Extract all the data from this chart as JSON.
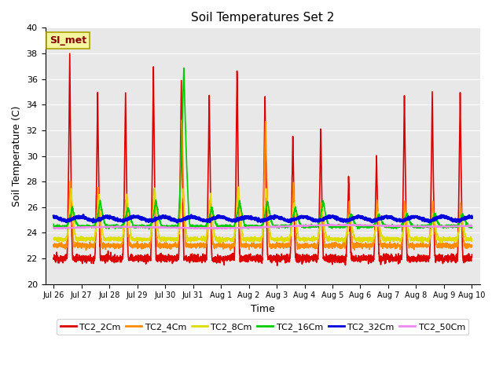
{
  "title": "Soil Temperatures Set 2",
  "xlabel": "Time",
  "ylabel": "Soil Temperature (C)",
  "ylim": [
    20,
    40
  ],
  "annotation": "SI_met",
  "bg_color": "#e8e8e8",
  "series": [
    {
      "label": "TC2_2Cm",
      "color": "#dd0000",
      "lw": 1.2
    },
    {
      "label": "TC2_4Cm",
      "color": "#ff8c00",
      "lw": 1.2
    },
    {
      "label": "TC2_8Cm",
      "color": "#dddd00",
      "lw": 1.2
    },
    {
      "label": "TC2_16Cm",
      "color": "#00cc00",
      "lw": 1.2
    },
    {
      "label": "TC2_32Cm",
      "color": "#0000dd",
      "lw": 2.0
    },
    {
      "label": "TC2_50Cm",
      "color": "#ee88ee",
      "lw": 1.2
    }
  ],
  "x_tick_labels": [
    "Jul 26",
    "Jul 27",
    "Jul 28",
    "Jul 29",
    "Jul 30",
    "Jul 31",
    "Aug 1",
    "Aug 2",
    "Aug 3",
    "Aug 4",
    "Aug 5",
    "Aug 6",
    "Aug 7",
    "Aug 8",
    "Aug 9",
    "Aug 10"
  ],
  "x_tick_positions": [
    0,
    1,
    2,
    3,
    4,
    5,
    6,
    7,
    8,
    9,
    10,
    11,
    12,
    13,
    14,
    15
  ],
  "yticks": [
    20,
    22,
    24,
    26,
    28,
    30,
    32,
    34,
    36,
    38,
    40
  ],
  "legend_colors": [
    "#dd0000",
    "#ff8c00",
    "#dddd00",
    "#00cc00",
    "#0000dd",
    "#ee88ee"
  ],
  "legend_labels": [
    "TC2_2Cm",
    "TC2_4Cm",
    "TC2_8Cm",
    "TC2_16Cm",
    "TC2_32Cm",
    "TC2_50Cm"
  ]
}
